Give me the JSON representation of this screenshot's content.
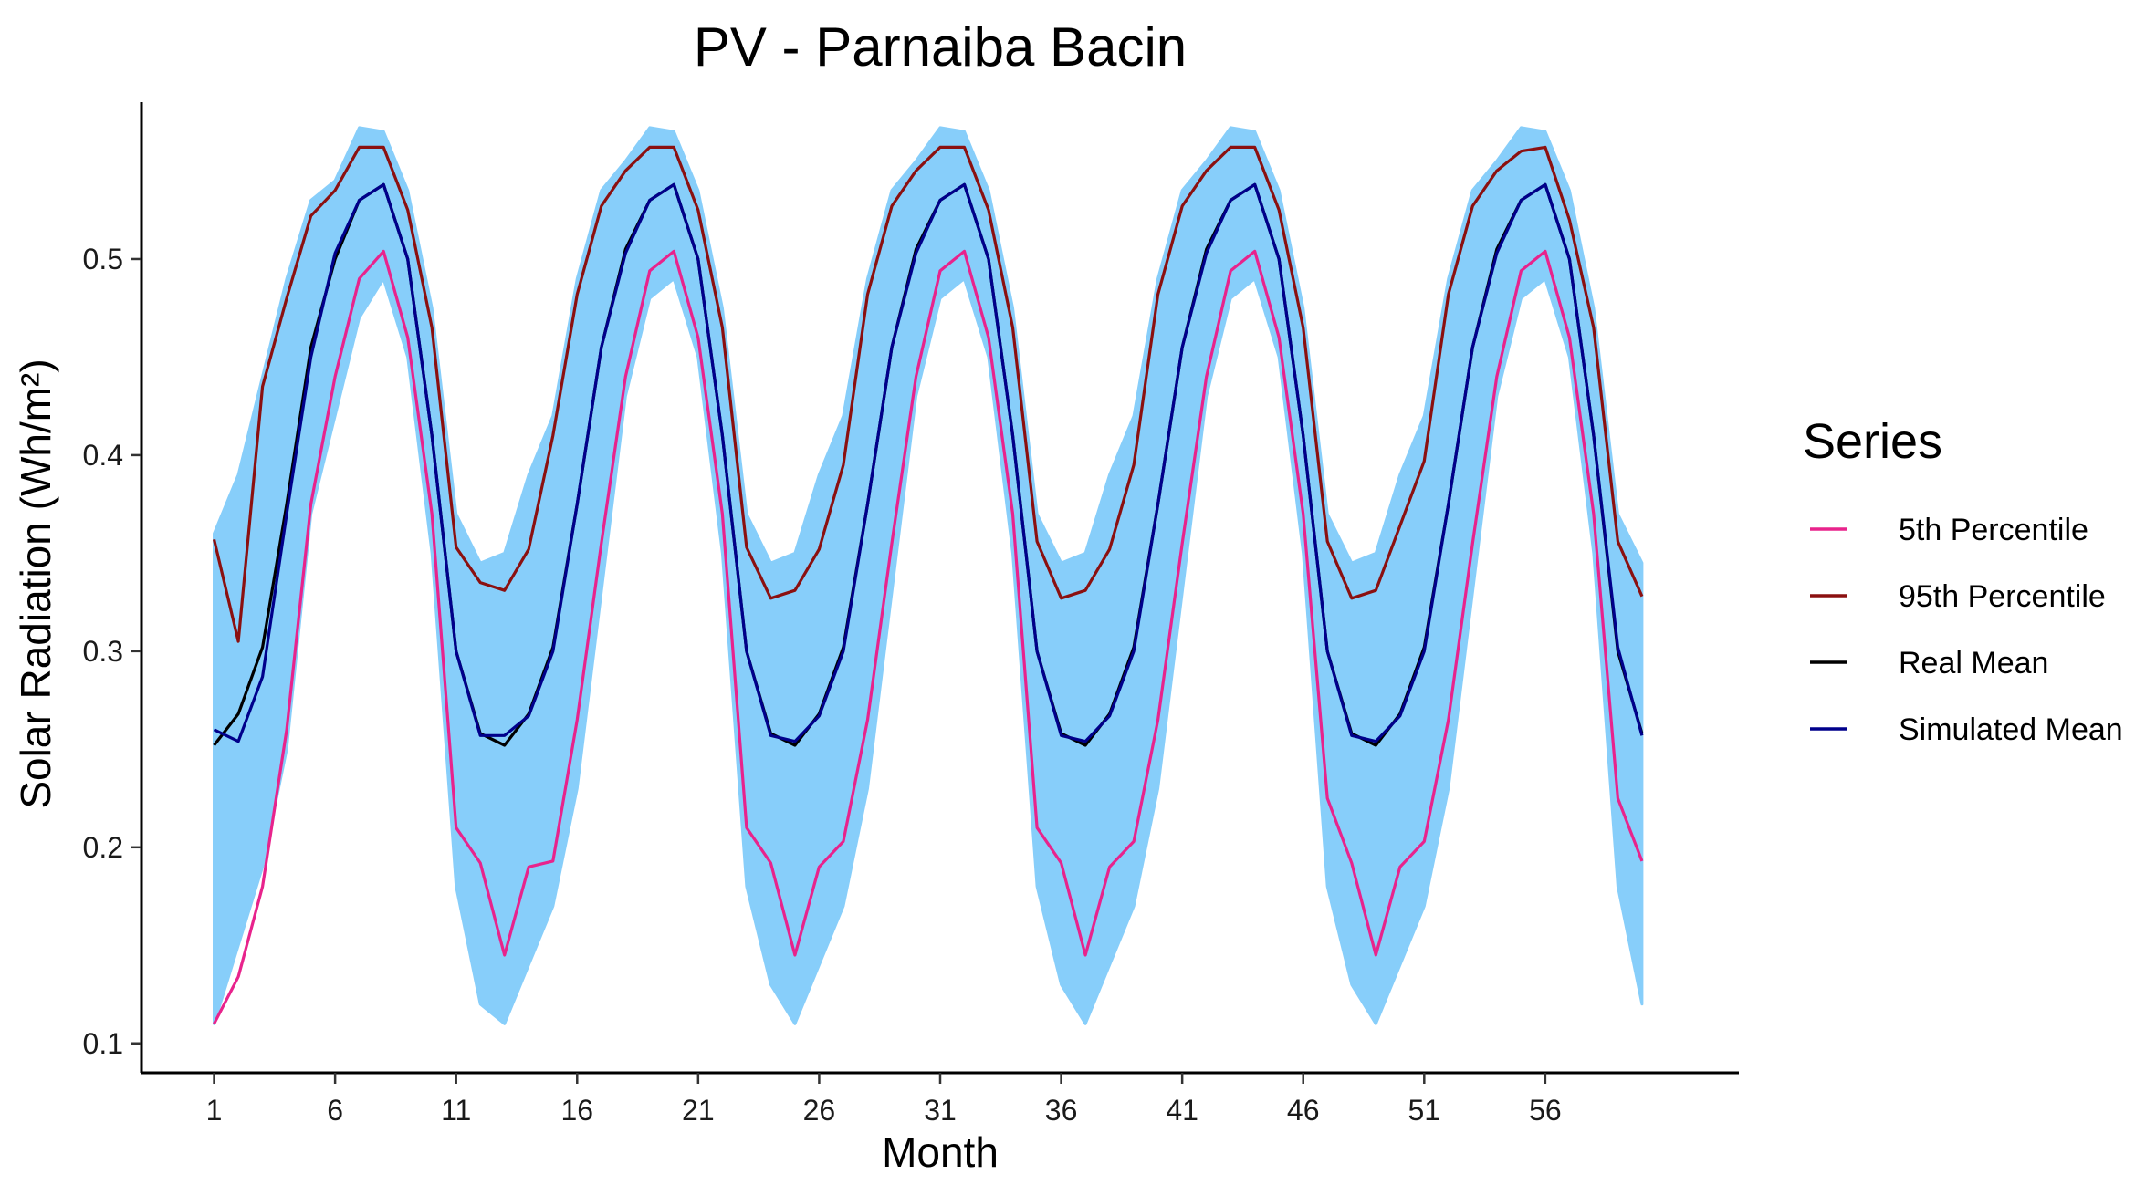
{
  "chart_data": {
    "type": "line",
    "title": "PV - Parnaiba Bacin",
    "xlabel": "Month",
    "ylabel": "Solar Radiation (Wh/m²)",
    "xlim": [
      -2,
      64
    ],
    "ylim": [
      0.085,
      0.58
    ],
    "x_ticks": [
      1,
      6,
      11,
      16,
      21,
      26,
      31,
      36,
      41,
      46,
      51,
      56
    ],
    "y_ticks": [
      0.1,
      0.2,
      0.3,
      0.4,
      0.5
    ],
    "y_tick_labels": [
      "0.1",
      "0.2",
      "0.3",
      "0.4",
      "0.5"
    ],
    "grid": false,
    "legend": {
      "title": "Series",
      "position": "right",
      "items": [
        {
          "label": "5th Percentile",
          "color": "#e8238c"
        },
        {
          "label": "95th Percentile",
          "color": "#8b1010"
        },
        {
          "label": "Real Mean",
          "color": "#000000"
        },
        {
          "label": "Simulated Mean",
          "color": "#00008b"
        }
      ]
    },
    "band": {
      "color": "#87cefa",
      "description_x_range": [
        1,
        60
      ],
      "lower": [
        0.11,
        0.15,
        0.19,
        0.25,
        0.37,
        0.42,
        0.47,
        0.49,
        0.45,
        0.35,
        0.18,
        0.12,
        0.11,
        0.14,
        0.17,
        0.23,
        0.33,
        0.43,
        0.48,
        0.49,
        0.45,
        0.35,
        0.18,
        0.13,
        0.11,
        0.14,
        0.17,
        0.23,
        0.33,
        0.43,
        0.48,
        0.49,
        0.45,
        0.35,
        0.18,
        0.13,
        0.11,
        0.14,
        0.17,
        0.23,
        0.33,
        0.43,
        0.48,
        0.49,
        0.45,
        0.35,
        0.18,
        0.13,
        0.11,
        0.14,
        0.17,
        0.23,
        0.33,
        0.43,
        0.48,
        0.49,
        0.45,
        0.35,
        0.18,
        0.12
      ],
      "upper": [
        0.36,
        0.39,
        0.44,
        0.49,
        0.53,
        0.54,
        0.567,
        0.565,
        0.535,
        0.475,
        0.37,
        0.345,
        0.35,
        0.39,
        0.42,
        0.49,
        0.535,
        0.55,
        0.567,
        0.565,
        0.535,
        0.475,
        0.37,
        0.345,
        0.35,
        0.39,
        0.42,
        0.49,
        0.535,
        0.55,
        0.567,
        0.565,
        0.535,
        0.475,
        0.37,
        0.345,
        0.35,
        0.39,
        0.42,
        0.49,
        0.535,
        0.55,
        0.567,
        0.565,
        0.535,
        0.475,
        0.37,
        0.345,
        0.35,
        0.39,
        0.42,
        0.49,
        0.535,
        0.55,
        0.567,
        0.565,
        0.535,
        0.475,
        0.37,
        0.345
      ]
    },
    "x": [
      1,
      2,
      3,
      4,
      5,
      6,
      7,
      8,
      9,
      10,
      11,
      12,
      13,
      14,
      15,
      16,
      17,
      18,
      19,
      20,
      21,
      22,
      23,
      24,
      25,
      26,
      27,
      28,
      29,
      30,
      31,
      32,
      33,
      34,
      35,
      36,
      37,
      38,
      39,
      40,
      41,
      42,
      43,
      44,
      45,
      46,
      47,
      48,
      49,
      50,
      51,
      52,
      53,
      54,
      55,
      56,
      57,
      58,
      59,
      60
    ],
    "series": [
      {
        "name": "5th Percentile",
        "color": "#e8238c",
        "values": [
          0.11,
          0.134,
          0.18,
          0.26,
          0.375,
          0.44,
          0.49,
          0.504,
          0.46,
          0.37,
          0.21,
          0.192,
          0.145,
          0.19,
          0.193,
          0.265,
          0.355,
          0.44,
          0.494,
          0.504,
          0.46,
          0.37,
          0.21,
          0.192,
          0.145,
          0.19,
          0.203,
          0.265,
          0.355,
          0.44,
          0.494,
          0.504,
          0.46,
          0.37,
          0.21,
          0.192,
          0.145,
          0.19,
          0.203,
          0.265,
          0.355,
          0.44,
          0.494,
          0.504,
          0.46,
          0.37,
          0.225,
          0.192,
          0.145,
          0.19,
          0.203,
          0.265,
          0.355,
          0.44,
          0.494,
          0.504,
          0.46,
          0.37,
          0.225,
          0.193
        ]
      },
      {
        "name": "95th Percentile",
        "color": "#8b1010",
        "values": [
          0.357,
          0.305,
          0.435,
          0.48,
          0.522,
          0.535,
          0.557,
          0.557,
          0.525,
          0.465,
          0.353,
          0.335,
          0.331,
          0.352,
          0.41,
          0.482,
          0.527,
          0.545,
          0.557,
          0.557,
          0.525,
          0.465,
          0.353,
          0.327,
          0.331,
          0.352,
          0.395,
          0.482,
          0.527,
          0.545,
          0.557,
          0.557,
          0.525,
          0.465,
          0.356,
          0.327,
          0.331,
          0.352,
          0.395,
          0.482,
          0.527,
          0.545,
          0.557,
          0.557,
          0.525,
          0.465,
          0.356,
          0.327,
          0.331,
          0.364,
          0.397,
          0.482,
          0.527,
          0.545,
          0.555,
          0.557,
          0.52,
          0.465,
          0.356,
          0.328
        ]
      },
      {
        "name": "Real Mean",
        "color": "#000000",
        "values": [
          0.252,
          0.268,
          0.302,
          0.375,
          0.455,
          0.5,
          0.53,
          0.538,
          0.5,
          0.41,
          0.3,
          0.258,
          0.252,
          0.268,
          0.302,
          0.375,
          0.455,
          0.505,
          0.53,
          0.538,
          0.5,
          0.41,
          0.3,
          0.258,
          0.252,
          0.268,
          0.302,
          0.375,
          0.455,
          0.505,
          0.53,
          0.538,
          0.5,
          0.41,
          0.3,
          0.258,
          0.252,
          0.268,
          0.302,
          0.375,
          0.455,
          0.505,
          0.53,
          0.538,
          0.5,
          0.41,
          0.3,
          0.258,
          0.252,
          0.268,
          0.302,
          0.375,
          0.455,
          0.505,
          0.53,
          0.538,
          0.5,
          0.41,
          0.3,
          0.258
        ]
      },
      {
        "name": "Simulated Mean",
        "color": "#00008b",
        "values": [
          0.26,
          0.254,
          0.287,
          0.37,
          0.45,
          0.503,
          0.53,
          0.538,
          0.5,
          0.41,
          0.3,
          0.257,
          0.257,
          0.267,
          0.3,
          0.375,
          0.455,
          0.503,
          0.53,
          0.538,
          0.5,
          0.41,
          0.3,
          0.257,
          0.254,
          0.267,
          0.3,
          0.375,
          0.455,
          0.503,
          0.53,
          0.538,
          0.5,
          0.41,
          0.3,
          0.257,
          0.254,
          0.267,
          0.3,
          0.375,
          0.455,
          0.503,
          0.53,
          0.538,
          0.5,
          0.41,
          0.3,
          0.257,
          0.254,
          0.267,
          0.3,
          0.375,
          0.455,
          0.503,
          0.53,
          0.538,
          0.5,
          0.41,
          0.302,
          0.257
        ]
      }
    ]
  }
}
